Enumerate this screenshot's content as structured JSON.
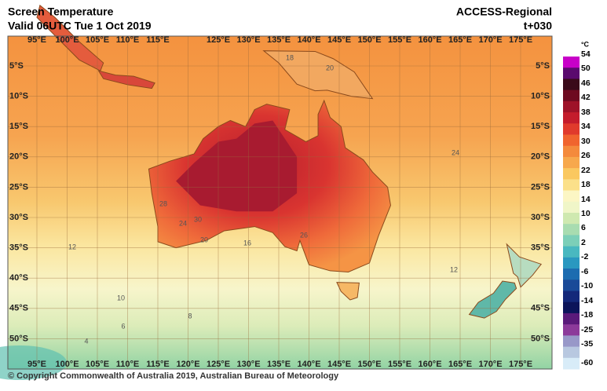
{
  "header": {
    "title": "Screen Temperature",
    "valid": "Valid 06UTC Tue 1 Oct 2019",
    "model": "ACCESS-Regional",
    "lead": "t+030"
  },
  "map": {
    "lon_labels_top": [
      "95°E",
      "100°E",
      "105°E",
      "110°E",
      "115°E",
      "125°E",
      "130°E",
      "135°E",
      "140°E",
      "145°E",
      "150°E",
      "155°E",
      "160°E",
      "165°E",
      "170°E",
      "175°E"
    ],
    "lon_labels_bottom": [
      "95°E",
      "100°E",
      "105°E",
      "110°E",
      "115°E",
      "120°E",
      "125°E",
      "130°E",
      "135°E",
      "140°E",
      "145°E",
      "150°E",
      "155°E",
      "160°E",
      "165°E",
      "170°E",
      "175°E"
    ],
    "lat_labels_left": [
      "5°S",
      "10°S",
      "15°S",
      "20°S",
      "25°S",
      "30°S",
      "35°S",
      "40°S",
      "45°S",
      "50°S"
    ],
    "lat_labels_right": [
      "5°S",
      "10°S",
      "15°S",
      "20°S",
      "25°S",
      "30°S",
      "35°S",
      "45°S",
      "50°S"
    ],
    "contour_labels": [
      "18",
      "20",
      "24",
      "28",
      "30",
      "24",
      "20",
      "16",
      "12",
      "10",
      "8",
      "6",
      "4",
      "26",
      "12"
    ]
  },
  "colorbar": {
    "unit": "°C",
    "labels": [
      "54",
      "50",
      "46",
      "42",
      "38",
      "34",
      "30",
      "26",
      "22",
      "18",
      "14",
      "10",
      "6",
      "2",
      "-2",
      "-6",
      "-10",
      "-14",
      "-18",
      "-25",
      "-35",
      "-60"
    ]
  },
  "footer": {
    "copyright": "© Copyright Commonwealth of Australia 2019, Australian Bureau of Meteorology"
  }
}
